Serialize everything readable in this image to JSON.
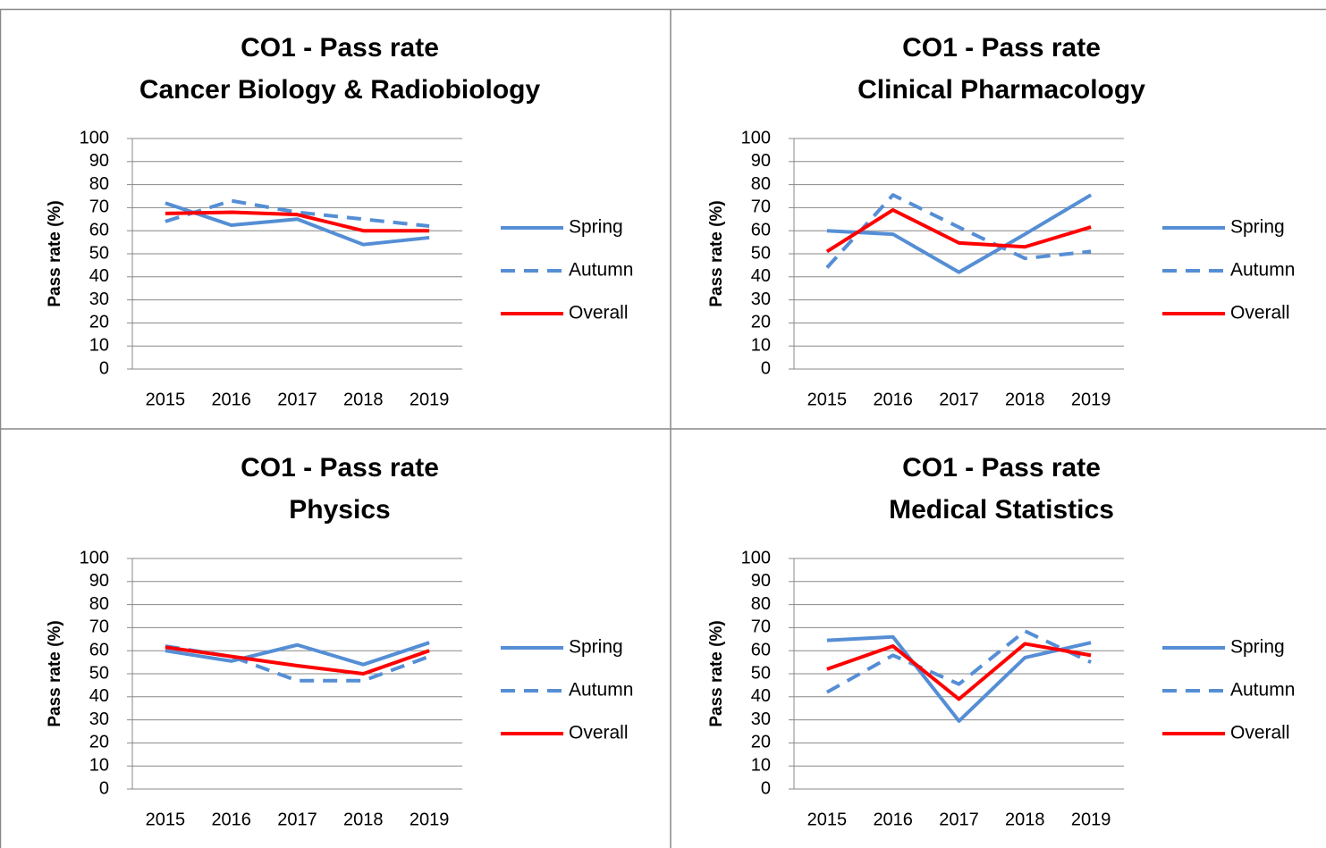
{
  "chart_data": [
    {
      "type": "line",
      "title": "CO1 - Pass rate",
      "subtitle": "Cancer Biology & Radiobiology",
      "y_label": "Pass rate (%)",
      "categories": [
        "2015",
        "2016",
        "2017",
        "2018",
        "2019"
      ],
      "series": [
        {
          "name": "Spring",
          "color": "#558ED5",
          "dash": "solid",
          "values": [
            72,
            62.4,
            65,
            54,
            57
          ]
        },
        {
          "name": "Autumn",
          "color": "#558ED5",
          "dash": "dashed",
          "values": [
            64,
            73,
            68,
            65,
            62
          ]
        },
        {
          "name": "Overall",
          "color": "#FF0000",
          "dash": "solid",
          "values": [
            67.5,
            68,
            67,
            60,
            60
          ]
        }
      ],
      "ylim": [
        0,
        100
      ],
      "yticks": [
        0,
        10,
        20,
        30,
        40,
        50,
        60,
        70,
        80,
        90,
        100
      ],
      "grid": true,
      "legend": "right"
    },
    {
      "type": "line",
      "title": "CO1 - Pass rate",
      "subtitle": "Clinical Pharmacology",
      "y_label": "Pass rate (%)",
      "categories": [
        "2015",
        "2016",
        "2017",
        "2018",
        "2019"
      ],
      "series": [
        {
          "name": "Spring",
          "color": "#558ED5",
          "dash": "solid",
          "values": [
            60,
            58.5,
            42,
            58.5,
            75.5
          ]
        },
        {
          "name": "Autumn",
          "color": "#558ED5",
          "dash": "dashed",
          "values": [
            44,
            75.5,
            61.5,
            48,
            51
          ]
        },
        {
          "name": "Overall",
          "color": "#FF0000",
          "dash": "solid",
          "values": [
            51,
            69,
            54.7,
            53,
            61.6
          ]
        }
      ],
      "ylim": [
        0,
        100
      ],
      "yticks": [
        0,
        10,
        20,
        30,
        40,
        50,
        60,
        70,
        80,
        90,
        100
      ],
      "grid": true,
      "legend": "right"
    },
    {
      "type": "line",
      "title": "CO1 - Pass rate",
      "subtitle": "Physics",
      "y_label": "Pass rate (%)",
      "categories": [
        "2015",
        "2016",
        "2017",
        "2018",
        "2019"
      ],
      "series": [
        {
          "name": "Spring",
          "color": "#558ED5",
          "dash": "solid",
          "values": [
            60,
            55.5,
            62.5,
            54,
            63.5
          ]
        },
        {
          "name": "Autumn",
          "color": "#558ED5",
          "dash": "dashed",
          "values": [
            62,
            57.5,
            47,
            47,
            57.5
          ]
        },
        {
          "name": "Overall",
          "color": "#FF0000",
          "dash": "solid",
          "values": [
            61.5,
            57.5,
            53.5,
            50,
            60
          ]
        }
      ],
      "ylim": [
        0,
        100
      ],
      "yticks": [
        0,
        10,
        20,
        30,
        40,
        50,
        60,
        70,
        80,
        90,
        100
      ],
      "grid": true,
      "legend": "right"
    },
    {
      "type": "line",
      "title": "CO1 - Pass rate",
      "subtitle": "Medical Statistics",
      "y_label": "Pass rate (%)",
      "categories": [
        "2015",
        "2016",
        "2017",
        "2018",
        "2019"
      ],
      "series": [
        {
          "name": "Spring",
          "color": "#558ED5",
          "dash": "solid",
          "values": [
            64.5,
            66,
            29.5,
            57,
            63.5
          ]
        },
        {
          "name": "Autumn",
          "color": "#558ED5",
          "dash": "dashed",
          "values": [
            42,
            58,
            45.5,
            68.5,
            55
          ]
        },
        {
          "name": "Overall",
          "color": "#FF0000",
          "dash": "solid",
          "values": [
            52,
            62,
            39,
            63,
            58
          ]
        }
      ],
      "ylim": [
        0,
        100
      ],
      "yticks": [
        0,
        10,
        20,
        30,
        40,
        50,
        60,
        70,
        80,
        90,
        100
      ],
      "grid": true,
      "legend": "right"
    }
  ]
}
